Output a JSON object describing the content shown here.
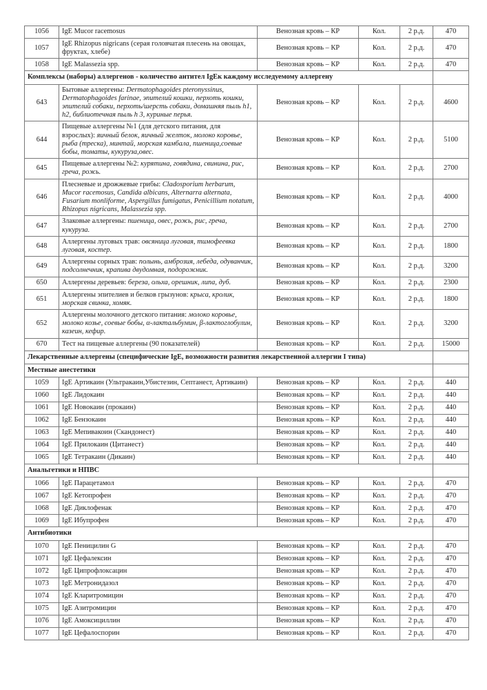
{
  "rows": [
    {
      "type": "item",
      "code": "1056",
      "name": "IgE Mucor racemosus",
      "material": "Венозная кровь – КР",
      "qty": "Кол.",
      "days": "2 р.д.",
      "price": "470"
    },
    {
      "type": "item",
      "code": "1057",
      "name": "IgE Rhizopus nigricans (серая головчатая плесень на овощах, фруктах, хлебе)",
      "material": "Венозная кровь – КР",
      "qty": "Кол.",
      "days": "2 р.д.",
      "price": "470"
    },
    {
      "type": "item",
      "code": "1058",
      "name": "IgE Malassezia spp.",
      "material": "Венозная кровь – КР",
      "qty": "Кол.",
      "days": "2 р.д.",
      "price": "470"
    },
    {
      "type": "section",
      "title": "Комплексы (наборы) аллергенов - количество антител IgEк каждому исследуемому аллергену"
    },
    {
      "type": "item",
      "code": "643",
      "name": "Бытовые аллергены: ",
      "name_italic": "Dermatophagoides pteronyssinus, Dermatophagoides farinae, эпителий кошки, перхоть кошки, эпителий собаки, перхоть/шерсть собаки, домашняя пыль h1, h2, библиотечная пыль h 3, куриные перья.",
      "material": "Венозная кровь – КР",
      "qty": "Кол.",
      "days": "2 р.д.",
      "price": "4600"
    },
    {
      "type": "item",
      "code": "644",
      "name": "Пищевые аллергены №1 (для детского питания, для взрослых): ",
      "name_italic": "яичный белок, яичный желток, молоко коровье, рыба (треска), минтай, морская камбала, пшеница,соевые бобы, томаты, кукуруза,овес.",
      "material": "Венозная кровь – КР",
      "qty": "Кол.",
      "days": "2 р.д.",
      "price": "5100"
    },
    {
      "type": "item",
      "code": "645",
      "name": "Пищевые аллергены №2: ",
      "name_italic": "курятина, говядина, свинина, рис, греча, рожь.",
      "material": "Венозная кровь – КР",
      "qty": "Кол.",
      "days": "2 р.д.",
      "price": "2700"
    },
    {
      "type": "item",
      "code": "646",
      "name": "Плесневые и дрожжевые грибы: ",
      "name_italic": "Cladosporium herbarum, Mucor racemosus, Candida albicans, Alternarra alternata, Fusarium monliforme, Aspergillus fumigatus, Penicillium notatum, Rhizopus nigricans, Malassezia spp.",
      "material": "Венозная кровь – КР",
      "qty": "Кол.",
      "days": "2 р.д.",
      "price": "4000"
    },
    {
      "type": "item",
      "code": "647",
      "name": "Злаковые аллергены: ",
      "name_italic": "пшеница, овес, рожь, рис, греча, кукуруза.",
      "material": "Венозная кровь – КР",
      "qty": "Кол.",
      "days": "2 р.д.",
      "price": "2700"
    },
    {
      "type": "item",
      "code": "648",
      "name": "Аллергены луговых трав: ",
      "name_italic": "овсяница луговая, тимофеевка луговая, костер.",
      "material": "Венозная кровь – КР",
      "qty": "Кол.",
      "days": "2 р.д.",
      "price": "1800"
    },
    {
      "type": "item",
      "code": "649",
      "name": "Аллергены сорных трав: ",
      "name_italic": "полынь, амброзия, лебеда, одуванчик, подсолнечник, крапива двудомная, подорожник.",
      "material": "Венозная кровь – КР",
      "qty": "Кол.",
      "days": "2 р.д.",
      "price": "3200"
    },
    {
      "type": "item",
      "code": "650",
      "name": "Аллергены деревьев: ",
      "name_italic": "береза, ольха, орешник, липа, дуб.",
      "material": "Венозная кровь – КР",
      "qty": "Кол.",
      "days": "2 р.д.",
      "price": "2300"
    },
    {
      "type": "item",
      "code": "651",
      "name": "Аллергены эпителиев и белков грызунов: ",
      "name_italic": "крыса, кролик, морская свинка, хомяк.",
      "material": "Венозная кровь – КР",
      "qty": "Кол.",
      "days": "2 р.д.",
      "price": "1800"
    },
    {
      "type": "item",
      "code": "652",
      "name": "Аллергены молочного детского питания: ",
      "name_italic": "молоко коровье, молоко козье, соевые бобы, α-лактальбумин, β-лактоглобулин, казеин, кефир.",
      "material": "Венозная кровь – КР",
      "qty": "Кол.",
      "days": "2 р.д.",
      "price": "3200"
    },
    {
      "type": "item",
      "code": "670",
      "name": "Тест на пищевые аллергены (90 показателей)",
      "material": "Венозная кровь – КР",
      "qty": "Кол.",
      "days": "2 р.д.",
      "price": "15000"
    },
    {
      "type": "section",
      "title": "Лекарственные аллергены (специфические IgE,  возможности развития лекарственной аллергии I типа)"
    },
    {
      "type": "section",
      "title": "Местные анестетики"
    },
    {
      "type": "item",
      "code": "1059",
      "name": "IgE Артикаин (Ультракаин,Убистезин, Септанест, Артикаин)",
      "material": "Венозная кровь – КР",
      "qty": "Кол.",
      "days": "2 р.д.",
      "price": "440"
    },
    {
      "type": "item",
      "code": "1060",
      "name": "IgE Лидокаин",
      "material": "Венозная кровь – КР",
      "qty": "Кол.",
      "days": "2 р.д.",
      "price": "440"
    },
    {
      "type": "item",
      "code": "1061",
      "name": "IgE Новокаин (прокаин)",
      "material": "Венозная кровь – КР",
      "qty": "Кол.",
      "days": "2 р.д.",
      "price": "440"
    },
    {
      "type": "item",
      "code": "1062",
      "name": "IgE Бензокаин",
      "material": "Венозная кровь – КР",
      "qty": "Кол.",
      "days": "2 р.д.",
      "price": "440"
    },
    {
      "type": "item",
      "code": "1063",
      "name": "IgE Мепивакоин (Скандонест)",
      "material": "Венозная кровь – КР",
      "qty": "Кол.",
      "days": "2 р.д.",
      "price": "440"
    },
    {
      "type": "item",
      "code": "1064",
      "name": "IgE Прилокаин (Цитанест)",
      "material": "Венозная кровь – КР",
      "qty": "Кол.",
      "days": "2 р.д.",
      "price": "440"
    },
    {
      "type": "item",
      "code": "1065",
      "name": "IgE Тетракаин (Дикаин)",
      "material": "Венозная кровь – КР",
      "qty": "Кол.",
      "days": "2 р.д.",
      "price": "440"
    },
    {
      "type": "section",
      "title": "Анальгетики и НПВС"
    },
    {
      "type": "item",
      "code": "1066",
      "name": "IgE Парацетамол",
      "material": "Венозная кровь – КР",
      "qty": "Кол.",
      "days": "2 р.д.",
      "price": "470"
    },
    {
      "type": "item",
      "code": "1067",
      "name": "IgE Кетопрофен",
      "material": "Венозная кровь – КР",
      "qty": "Кол.",
      "days": "2 р.д.",
      "price": "470"
    },
    {
      "type": "item",
      "code": "1068",
      "name": "IgE Диклофенак",
      "material": "Венозная кровь – КР",
      "qty": "Кол.",
      "days": "2 р.д.",
      "price": "470"
    },
    {
      "type": "item",
      "code": "1069",
      "name": "IgE Ибупрофен",
      "material": "Венозная кровь – КР",
      "qty": "Кол.",
      "days": "2 р.д.",
      "price": "470"
    },
    {
      "type": "section",
      "title": "Антибиотики"
    },
    {
      "type": "item",
      "code": "1070",
      "name": "IgE Пеницилин G",
      "material": "Венозная кровь – КР",
      "qty": "Кол.",
      "days": "2 р.д.",
      "price": "470"
    },
    {
      "type": "item",
      "code": "1071",
      "name": "IgE Цефалексин",
      "material": "Венозная кровь – КР",
      "qty": "Кол.",
      "days": "2 р.д.",
      "price": "470"
    },
    {
      "type": "item",
      "code": "1072",
      "name": "IgE Ципрофлоксацин",
      "material": "Венозная кровь – КР",
      "qty": "Кол.",
      "days": "2 р.д.",
      "price": "470"
    },
    {
      "type": "item",
      "code": "1073",
      "name": "IgE Метронидазол",
      "material": "Венозная кровь – КР",
      "qty": "Кол.",
      "days": "2 р.д.",
      "price": "470"
    },
    {
      "type": "item",
      "code": "1074",
      "name": "IgE Кларитромицин",
      "material": "Венозная кровь – КР",
      "qty": "Кол.",
      "days": "2 р.д.",
      "price": "470"
    },
    {
      "type": "item",
      "code": "1075",
      "name": "IgE Азитромицин",
      "material": "Венозная кровь – КР",
      "qty": "Кол.",
      "days": "2 р.д.",
      "price": "470"
    },
    {
      "type": "item",
      "code": "1076",
      "name": "IgE Амоксициллин",
      "material": "Венозная кровь – КР",
      "qty": "Кол.",
      "days": "2 р.д.",
      "price": "470"
    },
    {
      "type": "item",
      "code": "1077",
      "name": "IgE Цефалоспорин",
      "material": "Венозная кровь – КР",
      "qty": "Кол.",
      "days": "2 р.д.",
      "price": "470"
    }
  ]
}
